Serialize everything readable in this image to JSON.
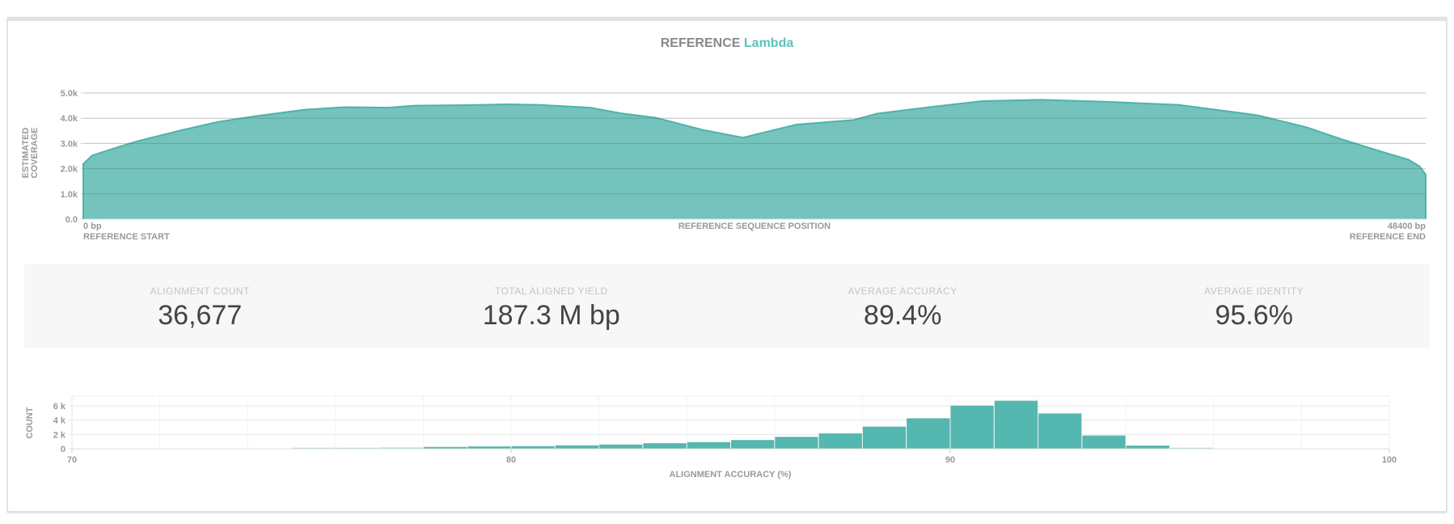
{
  "header": {
    "title_prefix": "REFERENCE",
    "reference_name": "Lambda"
  },
  "colors": {
    "accent": "#5bc4bb",
    "area_fill": "#74c3bc",
    "area_stroke": "#4fb3aa",
    "bar_fill": "#54b7b0"
  },
  "stats": [
    {
      "label": "ALIGNMENT COUNT",
      "value": "36,677"
    },
    {
      "label": "TOTAL ALIGNED YIELD",
      "value": "187.3 M bp"
    },
    {
      "label": "AVERAGE ACCURACY",
      "value": "89.4%"
    },
    {
      "label": "AVERAGE IDENTITY",
      "value": "95.6%"
    }
  ],
  "chart_data": [
    {
      "type": "area",
      "ylabel": "ESTIMATED COVERAGE",
      "xlabel": "REFERENCE SEQUENCE POSITION",
      "x_start_label": "0 bp",
      "x_start_caption": "REFERENCE START",
      "x_end_label": "48400 bp",
      "x_end_caption": "REFERENCE END",
      "xlim": [
        0,
        48400
      ],
      "ylim": [
        0,
        5000
      ],
      "yticks": [
        {
          "v": 0,
          "label": "0.0"
        },
        {
          "v": 1000,
          "label": "1.0k"
        },
        {
          "v": 2000,
          "label": "2.0k"
        },
        {
          "v": 3000,
          "label": "3.0k"
        },
        {
          "v": 4000,
          "label": "4.0k"
        },
        {
          "v": 5000,
          "label": "5.0k"
        }
      ],
      "grid": true,
      "x": [
        0,
        320,
        1200,
        1980,
        3560,
        4840,
        6270,
        7990,
        9420,
        11000,
        11950,
        13850,
        15280,
        16390,
        18280,
        19360,
        20640,
        22360,
        23790,
        24400,
        25720,
        27790,
        28600,
        30500,
        32420,
        34520,
        36910,
        39480,
        42330,
        44110,
        45390,
        46970,
        47780,
        48180,
        48400
      ],
      "y": [
        2190,
        2520,
        2840,
        3100,
        3530,
        3850,
        4090,
        4340,
        4440,
        4420,
        4500,
        4520,
        4550,
        4530,
        4420,
        4200,
        4020,
        3530,
        3230,
        3400,
        3750,
        3930,
        4180,
        4440,
        4680,
        4730,
        4650,
        4530,
        4120,
        3640,
        3160,
        2620,
        2360,
        2090,
        1770
      ]
    },
    {
      "type": "bar",
      "ylabel": "COUNT",
      "xlabel": "ALIGNMENT ACCURACY (%)",
      "xlim": [
        70,
        100
      ],
      "ylim": [
        0,
        7350
      ],
      "xticks": [
        {
          "v": 70,
          "label": "70"
        },
        {
          "v": 80,
          "label": "80"
        },
        {
          "v": 90,
          "label": "90"
        },
        {
          "v": 100,
          "label": "100"
        }
      ],
      "yticks": [
        {
          "v": 0,
          "label": "0"
        },
        {
          "v": 2000,
          "label": "2 k"
        },
        {
          "v": 4000,
          "label": "4 k"
        },
        {
          "v": 6000,
          "label": "6 k"
        }
      ],
      "grid": true,
      "bin_width": 1,
      "bins": [
        75,
        76,
        77,
        78,
        79,
        80,
        81,
        82,
        83,
        84,
        85,
        86,
        87,
        88,
        89,
        90,
        91,
        92,
        93,
        94,
        95,
        96
      ],
      "values": [
        150,
        150,
        190,
        260,
        330,
        370,
        480,
        590,
        780,
        930,
        1220,
        1670,
        2150,
        3100,
        4260,
        6040,
        6720,
        4940,
        1850,
        450,
        150,
        20
      ]
    }
  ]
}
